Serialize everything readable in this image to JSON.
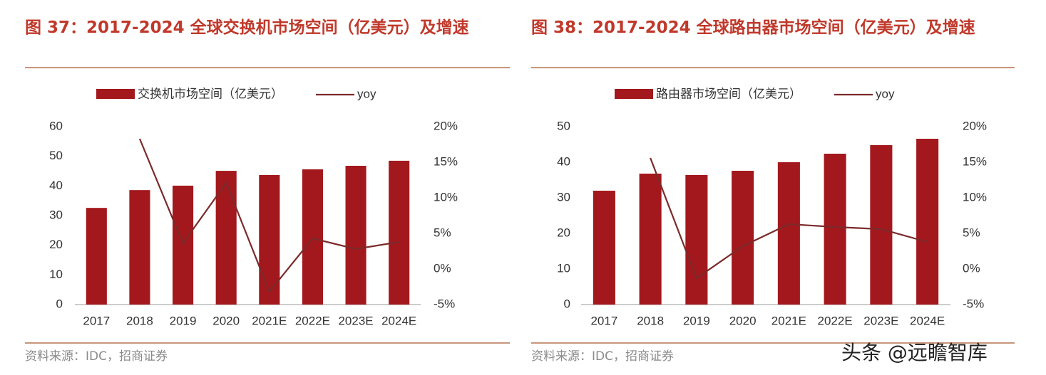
{
  "chart_data": [
    {
      "type": "bar_line",
      "title": "图 37：2017-2024 全球交换机市场空间（亿美元）及增速",
      "source": "资料来源：IDC，招商证券",
      "categories": [
        "2017",
        "2018",
        "2019",
        "2020",
        "2021E",
        "2022E",
        "2023E",
        "2024E"
      ],
      "series": [
        {
          "name": "交换机市场空间（亿美元）",
          "type": "bar",
          "color": "#a3181d",
          "values": [
            32.6,
            38.6,
            40.1,
            45.1,
            43.7,
            45.6,
            46.8,
            48.5
          ]
        },
        {
          "name": "yoy",
          "type": "line",
          "axis": "y2",
          "color": "#7b2a2a",
          "values": [
            null,
            18.3,
            3.6,
            12.1,
            -3.2,
            4.3,
            2.8,
            3.8
          ]
        }
      ],
      "ylim": [
        0,
        60
      ],
      "yticks": [
        0,
        10,
        20,
        30,
        40,
        50,
        60
      ],
      "y2lim": [
        -5,
        20
      ],
      "y2ticks": [
        {
          "value": -5,
          "label": "-5%"
        },
        {
          "value": 0,
          "label": "0%"
        },
        {
          "value": 5,
          "label": "5%"
        },
        {
          "value": 10,
          "label": "10%"
        },
        {
          "value": 15,
          "label": "15%"
        },
        {
          "value": 20,
          "label": "20%"
        }
      ],
      "legend": "top",
      "grid": false
    },
    {
      "type": "bar_line",
      "title": "图 38：2017-2024 全球路由器市场空间（亿美元）及增速",
      "source": "资料来源：IDC，招商证券",
      "categories": [
        "2017",
        "2018",
        "2019",
        "2020",
        "2021E",
        "2022E",
        "2023E",
        "2024E"
      ],
      "series": [
        {
          "name": "路由器市场空间（亿美元）",
          "type": "bar",
          "color": "#a3181d",
          "values": [
            32,
            36.8,
            36.4,
            37.6,
            40,
            42.4,
            44.8,
            46.6
          ]
        },
        {
          "name": "yoy",
          "type": "line",
          "axis": "y2",
          "color": "#7b2a2a",
          "values": [
            null,
            15.6,
            -1.3,
            3.2,
            6.3,
            5.9,
            5.6,
            3.8
          ]
        }
      ],
      "ylim": [
        0,
        50
      ],
      "yticks": [
        0,
        10,
        20,
        30,
        40,
        50
      ],
      "y2lim": [
        -5,
        20
      ],
      "y2ticks": [
        {
          "value": -5,
          "label": "-5%"
        },
        {
          "value": 0,
          "label": "0%"
        },
        {
          "value": 5,
          "label": "5%"
        },
        {
          "value": 10,
          "label": "10%"
        },
        {
          "value": 15,
          "label": "15%"
        },
        {
          "value": 20,
          "label": "20%"
        }
      ],
      "legend": "top",
      "grid": false
    }
  ],
  "watermark": "头条 @远瞻智库"
}
